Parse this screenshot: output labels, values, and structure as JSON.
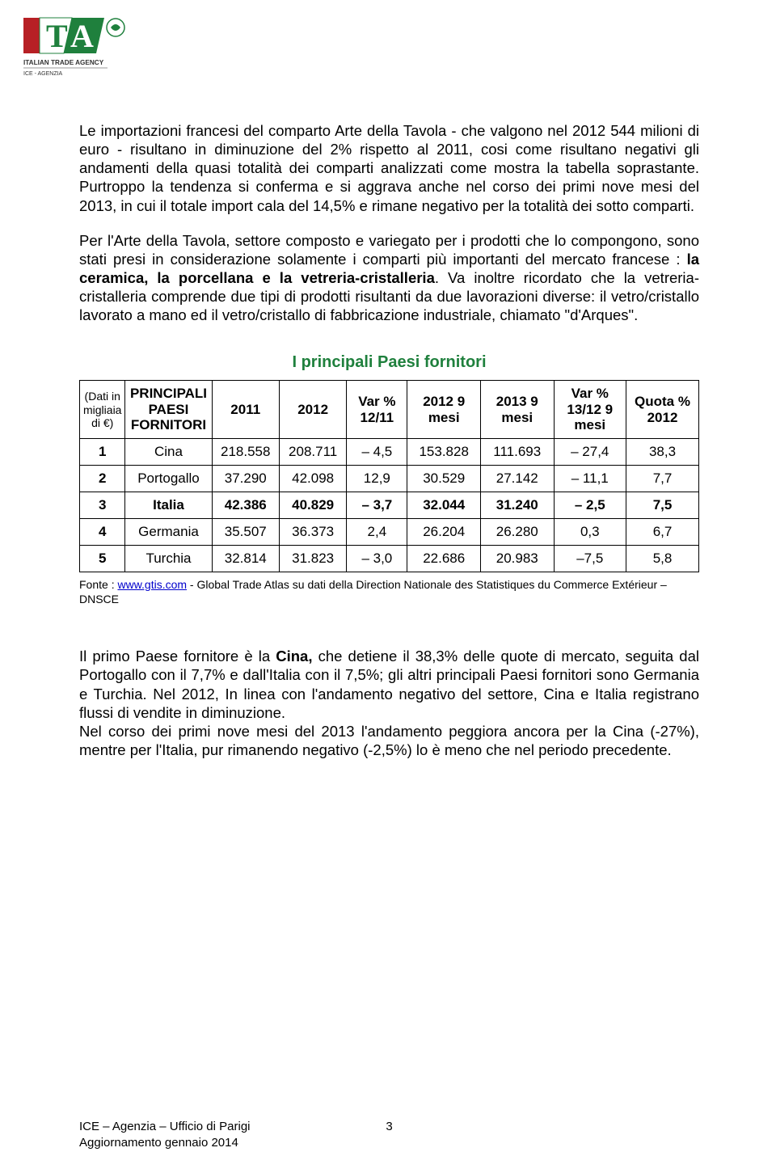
{
  "colors": {
    "logo_red": "#b72025",
    "logo_green": "#1f803d",
    "logo_text": "#333333",
    "title_green": "#1f803d",
    "link_blue": "#0000cc",
    "text_black": "#000000",
    "background": "#ffffff",
    "table_border": "#000000"
  },
  "fonts": {
    "body_family": "Trebuchet MS",
    "body_size_pt": 14,
    "title_size_pt": 15,
    "source_family": "Arial",
    "source_size_pt": 10.5,
    "footer_size_pt": 11
  },
  "logo": {
    "agency_line1": "ITALIAN TRADE AGENCY",
    "agency_line2": "ICE - AGENZIA"
  },
  "paragraphs": {
    "p1": "Le importazioni francesi del comparto Arte della Tavola - che valgono nel 2012 544 milioni di euro - risultano in diminuzione del 2% rispetto al 2011, cosi come risultano negativi gli andamenti della quasi totalità dei comparti analizzati come mostra la tabella soprastante. Purtroppo la tendenza si conferma e si aggrava anche nel corso dei primi nove mesi del 2013, in cui il totale import cala del 14,5% e rimane negativo per la totalità dei sotto comparti.",
    "p2_a": "Per l'Arte della Tavola, settore composto e variegato per i prodotti che lo compongono, sono stati presi in considerazione solamente i comparti più importanti del mercato francese : ",
    "p2_b": "la ceramica, la porcellana e la vetreria-cristalleria",
    "p2_c": ". Va inoltre ricordato che la vetreria-cristalleria comprende due tipi di prodotti risultanti da due lavorazioni diverse: il vetro/cristallo lavorato a mano ed il vetro/cristallo di fabbricazione industriale, chiamato \"d'Arques\".",
    "p3_a": "Il primo Paese fornitore è la ",
    "p3_b": "Cina,",
    "p3_c": " che detiene il 38,3% delle quote di mercato, seguita dal Portogallo con il 7,7% e dall'Italia con il 7,5%; gli altri principali Paesi fornitori sono Germania e Turchia. Nel 2012, In linea con l'andamento negativo del settore, Cina e Italia registrano flussi di vendite in diminuzione.",
    "p3_d": "Nel corso dei primi nove mesi del 2013 l'andamento peggiora ancora per la Cina (-27%), mentre per l'Italia, pur rimanendo negativo (-2,5%) lo è meno che nel periodo precedente."
  },
  "table": {
    "title": "I principali Paesi fornitori",
    "headers": {
      "unit": "(Dati in migliaia di €)",
      "name": "PRINCIPALI PAESI FORNITORI",
      "y2011": "2011",
      "y2012": "2012",
      "var1": "Var % 12/11",
      "m2012": "2012 9 mesi",
      "m2013": "2013 9 mesi",
      "var2": "Var % 13/12 9 mesi",
      "quota": "Quota % 2012"
    },
    "rows": [
      {
        "rank": "1",
        "name": "Cina",
        "y2011": "218.558",
        "y2012": "208.711",
        "var1": "– 4,5",
        "m2012": "153.828",
        "m2013": "111.693",
        "var2": "– 27,4",
        "quota": "38,3",
        "bold": false
      },
      {
        "rank": "2",
        "name": "Portogallo",
        "y2011": "37.290",
        "y2012": "42.098",
        "var1": "12,9",
        "m2012": "30.529",
        "m2013": "27.142",
        "var2": "– 11,1",
        "quota": "7,7",
        "bold": false
      },
      {
        "rank": "3",
        "name": "Italia",
        "y2011": "42.386",
        "y2012": "40.829",
        "var1": "– 3,7",
        "m2012": "32.044",
        "m2013": "31.240",
        "var2": "– 2,5",
        "quota": "7,5",
        "bold": true
      },
      {
        "rank": "4",
        "name": "Germania",
        "y2011": "35.507",
        "y2012": "36.373",
        "var1": "2,4",
        "m2012": "26.204",
        "m2013": "26.280",
        "var2": "0,3",
        "quota": "6,7",
        "bold": false
      },
      {
        "rank": "5",
        "name": "Turchia",
        "y2011": "32.814",
        "y2012": "31.823",
        "var1": "– 3,0",
        "m2012": "22.686",
        "m2013": "20.983",
        "var2": "–7,5",
        "quota": "5,8",
        "bold": false
      }
    ],
    "source_prefix": "Fonte : ",
    "source_link": "www.gtis.com",
    "source_suffix": " - Global Trade Atlas su dati della Direction Nationale des Statistiques du Commerce Extérieur – DNSCE"
  },
  "footer": {
    "line1": "ICE – Agenzia – Ufficio di Parigi",
    "line2": "Aggiornamento gennaio 2014",
    "page": "3"
  }
}
